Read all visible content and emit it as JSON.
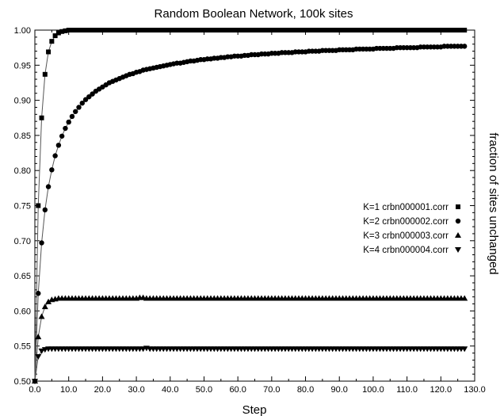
{
  "chart_data": {
    "type": "scatter",
    "title": "Random Boolean Network, 100k sites",
    "xlabel": "Step",
    "ylabel": "fraction of sites unchanged",
    "xlim": [
      0,
      130
    ],
    "ylim": [
      0.5,
      1.0
    ],
    "xticks": [
      0,
      10,
      20,
      30,
      40,
      50,
      60,
      70,
      80,
      90,
      100,
      110,
      120,
      130
    ],
    "yticks": [
      0.5,
      0.55,
      0.6,
      0.65,
      0.7,
      0.75,
      0.8,
      0.85,
      0.9,
      0.95,
      1.0
    ],
    "xtick_labels": [
      "0.0",
      "10.0",
      "20.0",
      "30.0",
      "40.0",
      "50.0",
      "60.0",
      "70.0",
      "80.0",
      "90.0",
      "100.0",
      "110.0",
      "120.0",
      "130.0"
    ],
    "ytick_labels": [
      "0.50",
      "0.55",
      "0.60",
      "0.65",
      "0.70",
      "0.75",
      "0.80",
      "0.85",
      "0.90",
      "0.95",
      "1.00"
    ],
    "grid": false,
    "legend_position": "right",
    "series": [
      {
        "name": "K=1  crbn000001.corr",
        "marker": "square",
        "line": true,
        "x": [
          0,
          1,
          2,
          3,
          4,
          5,
          6,
          7,
          8,
          9,
          10,
          11,
          12,
          13,
          14,
          15,
          16,
          17,
          18,
          19,
          20,
          21,
          22,
          23,
          24,
          25,
          26,
          27,
          28,
          29,
          30,
          31,
          32,
          33,
          34,
          35,
          36,
          37,
          38,
          39,
          40,
          41,
          42,
          43,
          44,
          45,
          46,
          47,
          48,
          49,
          50,
          51,
          52,
          53,
          54,
          55,
          56,
          57,
          58,
          59,
          60,
          61,
          62,
          63,
          64,
          65,
          66,
          67,
          68,
          69,
          70,
          71,
          72,
          73,
          74,
          75,
          76,
          77,
          78,
          79,
          80,
          81,
          82,
          83,
          84,
          85,
          86,
          87,
          88,
          89,
          90,
          91,
          92,
          93,
          94,
          95,
          96,
          97,
          98,
          99,
          100,
          101,
          102,
          103,
          104,
          105,
          106,
          107,
          108,
          109,
          110,
          111,
          112,
          113,
          114,
          115,
          116,
          117,
          118,
          119,
          120,
          121,
          122,
          123,
          124,
          125,
          126,
          127
        ],
        "y": [
          0.5,
          0.75,
          0.875,
          0.937,
          0.969,
          0.984,
          0.992,
          0.996,
          0.998,
          0.999,
          1.0,
          1.0,
          1.0,
          1.0,
          1.0,
          1.0,
          1.0,
          1.0,
          1.0,
          1.0,
          1.0,
          1.0,
          1.0,
          1.0,
          1.0,
          1.0,
          1.0,
          1.0,
          1.0,
          1.0,
          1.0,
          1.0,
          1.0,
          1.0,
          1.0,
          1.0,
          1.0,
          1.0,
          1.0,
          1.0,
          1.0,
          1.0,
          1.0,
          1.0,
          1.0,
          1.0,
          1.0,
          1.0,
          1.0,
          1.0,
          1.0,
          1.0,
          1.0,
          1.0,
          1.0,
          1.0,
          1.0,
          1.0,
          1.0,
          1.0,
          1.0,
          1.0,
          1.0,
          1.0,
          1.0,
          1.0,
          1.0,
          1.0,
          1.0,
          1.0,
          1.0,
          1.0,
          1.0,
          1.0,
          1.0,
          1.0,
          1.0,
          1.0,
          1.0,
          1.0,
          1.0,
          1.0,
          1.0,
          1.0,
          1.0,
          1.0,
          1.0,
          1.0,
          1.0,
          1.0,
          1.0,
          1.0,
          1.0,
          1.0,
          1.0,
          1.0,
          1.0,
          1.0,
          1.0,
          1.0,
          1.0,
          1.0,
          1.0,
          1.0,
          1.0,
          1.0,
          1.0,
          1.0,
          1.0,
          1.0,
          1.0,
          1.0,
          1.0,
          1.0,
          1.0,
          1.0,
          1.0,
          1.0,
          1.0,
          1.0,
          1.0,
          1.0,
          1.0,
          1.0,
          1.0,
          1.0,
          1.0,
          1.0
        ]
      },
      {
        "name": "K=2  crbn000002.corr",
        "marker": "circle",
        "line": true,
        "x": [
          0,
          1,
          2,
          3,
          4,
          5,
          6,
          7,
          8,
          9,
          10,
          11,
          12,
          13,
          14,
          15,
          16,
          17,
          18,
          19,
          20,
          21,
          22,
          23,
          24,
          25,
          26,
          27,
          28,
          29,
          30,
          31,
          32,
          33,
          34,
          35,
          36,
          37,
          38,
          39,
          40,
          41,
          42,
          43,
          44,
          45,
          46,
          47,
          48,
          49,
          50,
          51,
          52,
          53,
          54,
          55,
          56,
          57,
          58,
          59,
          60,
          61,
          62,
          63,
          64,
          65,
          66,
          67,
          68,
          69,
          70,
          71,
          72,
          73,
          74,
          75,
          76,
          77,
          78,
          79,
          80,
          81,
          82,
          83,
          84,
          85,
          86,
          87,
          88,
          89,
          90,
          91,
          92,
          93,
          94,
          95,
          96,
          97,
          98,
          99,
          100,
          101,
          102,
          103,
          104,
          105,
          106,
          107,
          108,
          109,
          110,
          111,
          112,
          113,
          114,
          115,
          116,
          117,
          118,
          119,
          120,
          121,
          122,
          123,
          124,
          125,
          126,
          127
        ],
        "y": [
          0.5,
          0.625,
          0.697,
          0.744,
          0.777,
          0.801,
          0.821,
          0.836,
          0.849,
          0.86,
          0.869,
          0.877,
          0.884,
          0.89,
          0.896,
          0.901,
          0.905,
          0.909,
          0.913,
          0.916,
          0.919,
          0.922,
          0.925,
          0.927,
          0.929,
          0.931,
          0.933,
          0.935,
          0.937,
          0.938,
          0.94,
          0.941,
          0.943,
          0.944,
          0.945,
          0.946,
          0.947,
          0.948,
          0.949,
          0.95,
          0.951,
          0.952,
          0.953,
          0.953,
          0.954,
          0.955,
          0.956,
          0.956,
          0.957,
          0.958,
          0.958,
          0.959,
          0.959,
          0.96,
          0.96,
          0.961,
          0.961,
          0.962,
          0.962,
          0.963,
          0.963,
          0.963,
          0.964,
          0.964,
          0.965,
          0.965,
          0.965,
          0.966,
          0.966,
          0.966,
          0.967,
          0.967,
          0.967,
          0.968,
          0.968,
          0.968,
          0.968,
          0.969,
          0.969,
          0.969,
          0.969,
          0.97,
          0.97,
          0.97,
          0.97,
          0.971,
          0.971,
          0.971,
          0.971,
          0.971,
          0.972,
          0.972,
          0.972,
          0.972,
          0.972,
          0.973,
          0.973,
          0.973,
          0.973,
          0.973,
          0.973,
          0.974,
          0.974,
          0.974,
          0.974,
          0.974,
          0.974,
          0.975,
          0.975,
          0.975,
          0.975,
          0.975,
          0.975,
          0.975,
          0.976,
          0.976,
          0.976,
          0.976,
          0.976,
          0.976,
          0.976,
          0.977,
          0.977,
          0.977,
          0.977,
          0.977,
          0.977,
          0.977
        ]
      },
      {
        "name": "K=3  crbn000003.corr",
        "marker": "triangle-up",
        "line": true,
        "x": [
          0,
          1,
          2,
          3,
          4,
          5,
          6,
          7,
          8,
          9,
          10,
          11,
          12,
          13,
          14,
          15,
          16,
          17,
          18,
          19,
          20,
          21,
          22,
          23,
          24,
          25,
          26,
          27,
          28,
          29,
          30,
          31,
          32,
          33,
          34,
          35,
          36,
          37,
          38,
          39,
          40,
          41,
          42,
          43,
          44,
          45,
          46,
          47,
          48,
          49,
          50,
          51,
          52,
          53,
          54,
          55,
          56,
          57,
          58,
          59,
          60,
          61,
          62,
          63,
          64,
          65,
          66,
          67,
          68,
          69,
          70,
          71,
          72,
          73,
          74,
          75,
          76,
          77,
          78,
          79,
          80,
          81,
          82,
          83,
          84,
          85,
          86,
          87,
          88,
          89,
          90,
          91,
          92,
          93,
          94,
          95,
          96,
          97,
          98,
          99,
          100,
          101,
          102,
          103,
          104,
          105,
          106,
          107,
          108,
          109,
          110,
          111,
          112,
          113,
          114,
          115,
          116,
          117,
          118,
          119,
          120,
          121,
          122,
          123,
          124,
          125,
          126,
          127
        ],
        "y": [
          0.5,
          0.563,
          0.592,
          0.606,
          0.613,
          0.616,
          0.617,
          0.618,
          0.618,
          0.618,
          0.618,
          0.618,
          0.618,
          0.618,
          0.618,
          0.618,
          0.618,
          0.618,
          0.618,
          0.618,
          0.618,
          0.618,
          0.618,
          0.618,
          0.618,
          0.618,
          0.618,
          0.618,
          0.618,
          0.618,
          0.618,
          0.619,
          0.619,
          0.618,
          0.618,
          0.618,
          0.618,
          0.618,
          0.618,
          0.618,
          0.618,
          0.618,
          0.618,
          0.618,
          0.618,
          0.618,
          0.618,
          0.618,
          0.618,
          0.618,
          0.618,
          0.618,
          0.618,
          0.618,
          0.618,
          0.618,
          0.618,
          0.618,
          0.618,
          0.618,
          0.618,
          0.618,
          0.618,
          0.618,
          0.618,
          0.618,
          0.618,
          0.618,
          0.618,
          0.618,
          0.618,
          0.618,
          0.618,
          0.618,
          0.618,
          0.618,
          0.618,
          0.618,
          0.618,
          0.618,
          0.618,
          0.618,
          0.618,
          0.618,
          0.618,
          0.618,
          0.618,
          0.618,
          0.618,
          0.618,
          0.618,
          0.618,
          0.618,
          0.618,
          0.618,
          0.618,
          0.618,
          0.618,
          0.618,
          0.618,
          0.618,
          0.618,
          0.618,
          0.618,
          0.618,
          0.618,
          0.618,
          0.618,
          0.618,
          0.618,
          0.618,
          0.618,
          0.618,
          0.618,
          0.618,
          0.618,
          0.618,
          0.618,
          0.618,
          0.618,
          0.618,
          0.618,
          0.618,
          0.618,
          0.618,
          0.618,
          0.618,
          0.618
        ]
      },
      {
        "name": "K=4  crbn000004.corr",
        "marker": "triangle-down",
        "line": true,
        "x": [
          0,
          1,
          2,
          3,
          4,
          5,
          6,
          7,
          8,
          9,
          10,
          11,
          12,
          13,
          14,
          15,
          16,
          17,
          18,
          19,
          20,
          21,
          22,
          23,
          24,
          25,
          26,
          27,
          28,
          29,
          30,
          31,
          32,
          33,
          34,
          35,
          36,
          37,
          38,
          39,
          40,
          41,
          42,
          43,
          44,
          45,
          46,
          47,
          48,
          49,
          50,
          51,
          52,
          53,
          54,
          55,
          56,
          57,
          58,
          59,
          60,
          61,
          62,
          63,
          64,
          65,
          66,
          67,
          68,
          69,
          70,
          71,
          72,
          73,
          74,
          75,
          76,
          77,
          78,
          79,
          80,
          81,
          82,
          83,
          84,
          85,
          86,
          87,
          88,
          89,
          90,
          91,
          92,
          93,
          94,
          95,
          96,
          97,
          98,
          99,
          100,
          101,
          102,
          103,
          104,
          105,
          106,
          107,
          108,
          109,
          110,
          111,
          112,
          113,
          114,
          115,
          116,
          117,
          118,
          119,
          120,
          121,
          122,
          123,
          124,
          125,
          126,
          127
        ],
        "y": [
          0.5,
          0.535,
          0.543,
          0.545,
          0.546,
          0.546,
          0.546,
          0.546,
          0.546,
          0.546,
          0.546,
          0.546,
          0.546,
          0.546,
          0.546,
          0.546,
          0.546,
          0.546,
          0.546,
          0.546,
          0.546,
          0.546,
          0.546,
          0.546,
          0.546,
          0.546,
          0.546,
          0.546,
          0.546,
          0.546,
          0.546,
          0.546,
          0.546,
          0.547,
          0.546,
          0.546,
          0.546,
          0.546,
          0.546,
          0.546,
          0.546,
          0.546,
          0.546,
          0.546,
          0.546,
          0.546,
          0.546,
          0.546,
          0.546,
          0.546,
          0.546,
          0.546,
          0.546,
          0.546,
          0.546,
          0.546,
          0.546,
          0.546,
          0.546,
          0.546,
          0.546,
          0.546,
          0.546,
          0.546,
          0.546,
          0.546,
          0.546,
          0.546,
          0.546,
          0.546,
          0.546,
          0.546,
          0.546,
          0.546,
          0.546,
          0.546,
          0.546,
          0.546,
          0.546,
          0.546,
          0.546,
          0.546,
          0.546,
          0.546,
          0.546,
          0.546,
          0.546,
          0.546,
          0.546,
          0.546,
          0.546,
          0.546,
          0.546,
          0.546,
          0.546,
          0.546,
          0.546,
          0.546,
          0.546,
          0.546,
          0.546,
          0.546,
          0.546,
          0.546,
          0.546,
          0.546,
          0.546,
          0.546,
          0.546,
          0.546,
          0.546,
          0.546,
          0.546,
          0.546,
          0.546,
          0.546,
          0.546,
          0.546,
          0.546,
          0.546,
          0.546,
          0.546,
          0.546,
          0.546,
          0.546,
          0.546,
          0.546,
          0.546
        ]
      }
    ],
    "colors": {
      "marker": "#000000",
      "line": "#555555",
      "axis": "#000000",
      "background": "#ffffff"
    }
  }
}
